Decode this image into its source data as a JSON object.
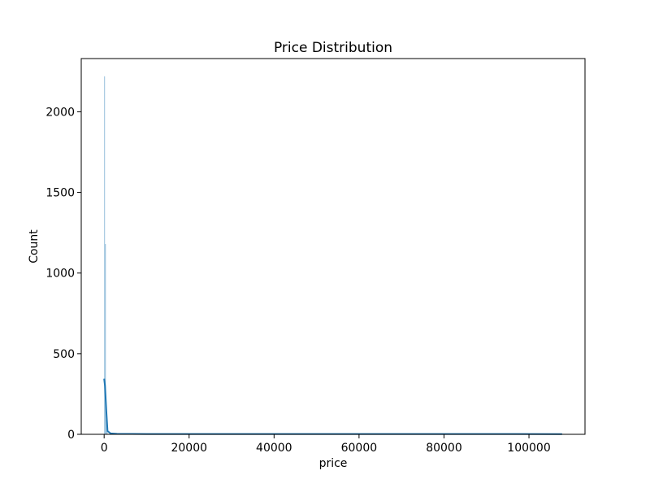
{
  "chart_data": {
    "type": "histogram",
    "title": "Price Distribution",
    "xlabel": "price",
    "ylabel": "Count",
    "xlim": [
      -5390,
      113190
    ],
    "ylim": [
      0,
      2330
    ],
    "x_ticks": [
      0,
      20000,
      40000,
      60000,
      80000,
      100000
    ],
    "x_tick_labels": [
      "0",
      "20000",
      "40000",
      "60000",
      "80000",
      "100000"
    ],
    "y_ticks": [
      0,
      500,
      1000,
      1500,
      2000
    ],
    "y_tick_labels": [
      "0",
      "500",
      "1000",
      "1500",
      "2000"
    ],
    "grid": false,
    "legend": "none",
    "color": "#1f77b4",
    "bars": [
      {
        "x0": 0,
        "x1": 200,
        "count": 2220
      },
      {
        "x0": 200,
        "x1": 400,
        "count": 1180
      },
      {
        "x0": 400,
        "x1": 600,
        "count": 90
      },
      {
        "x0": 600,
        "x1": 800,
        "count": 20
      }
    ],
    "kde": {
      "x": [
        0,
        200,
        500,
        800,
        1500,
        3000,
        10000,
        30000,
        60000,
        90000,
        107800
      ],
      "y": [
        345,
        300,
        150,
        20,
        6,
        3,
        2,
        2,
        2,
        2,
        1
      ]
    }
  }
}
